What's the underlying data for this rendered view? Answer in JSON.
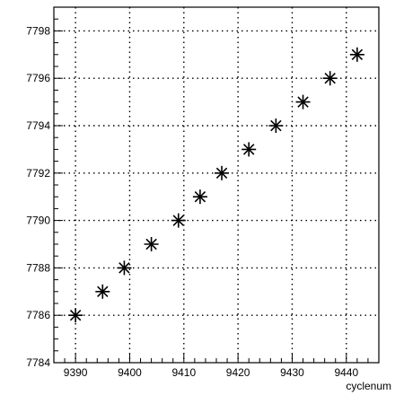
{
  "chart_data": {
    "type": "scatter",
    "title": "",
    "xlabel": "cyclenum",
    "ylabel": "",
    "xlim": [
      9386,
      9446
    ],
    "ylim": [
      7784,
      7799
    ],
    "x_ticks": [
      9390,
      9400,
      9410,
      9420,
      9430,
      9440
    ],
    "y_ticks": [
      7784,
      7786,
      7788,
      7790,
      7792,
      7794,
      7796,
      7798
    ],
    "grid": true,
    "marker": "asterisk",
    "points": [
      {
        "x": 9390,
        "y": 7786
      },
      {
        "x": 9395,
        "y": 7787
      },
      {
        "x": 9399,
        "y": 7788
      },
      {
        "x": 9404,
        "y": 7789
      },
      {
        "x": 9409,
        "y": 7790
      },
      {
        "x": 9413,
        "y": 7791
      },
      {
        "x": 9417,
        "y": 7792
      },
      {
        "x": 9422,
        "y": 7793
      },
      {
        "x": 9427,
        "y": 7794
      },
      {
        "x": 9432,
        "y": 7795
      },
      {
        "x": 9437,
        "y": 7796
      },
      {
        "x": 9442,
        "y": 7797
      }
    ]
  },
  "colors": {
    "axis": "#000000",
    "grid": "#000000",
    "marker": "#000000",
    "background": "#ffffff"
  }
}
